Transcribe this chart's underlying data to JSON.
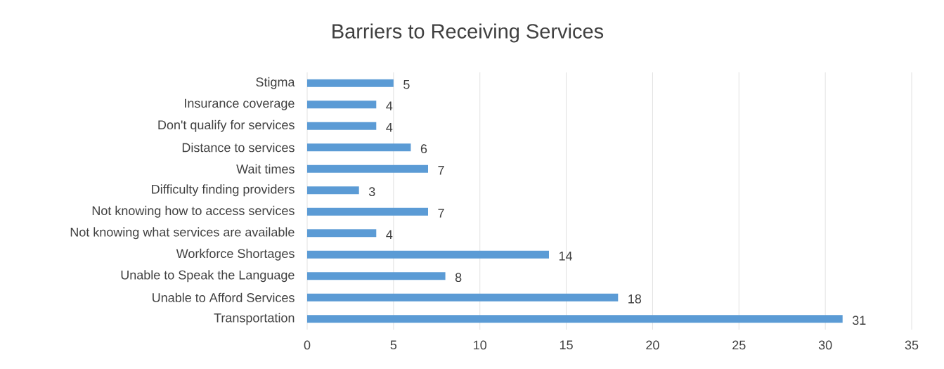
{
  "chart_data": {
    "type": "bar",
    "orientation": "horizontal",
    "title": "Barriers to Receiving Services",
    "categories": [
      "Stigma",
      "Insurance coverage",
      "Don't qualify for services",
      "Distance to services",
      "Wait times",
      "Difficulty finding providers",
      "Not knowing how to access services",
      "Not knowing what services are available",
      "Workforce Shortages",
      "Unable to Speak the Language",
      "Unable to Afford Services",
      "Transportation"
    ],
    "values": [
      5,
      4,
      4,
      6,
      7,
      3,
      7,
      4,
      14,
      8,
      18,
      31
    ],
    "color": "#5b9bd5",
    "xlim": [
      0,
      35
    ],
    "xticks": [
      0,
      5,
      10,
      15,
      20,
      25,
      30,
      35
    ],
    "grid": "x",
    "data_labels": true
  }
}
